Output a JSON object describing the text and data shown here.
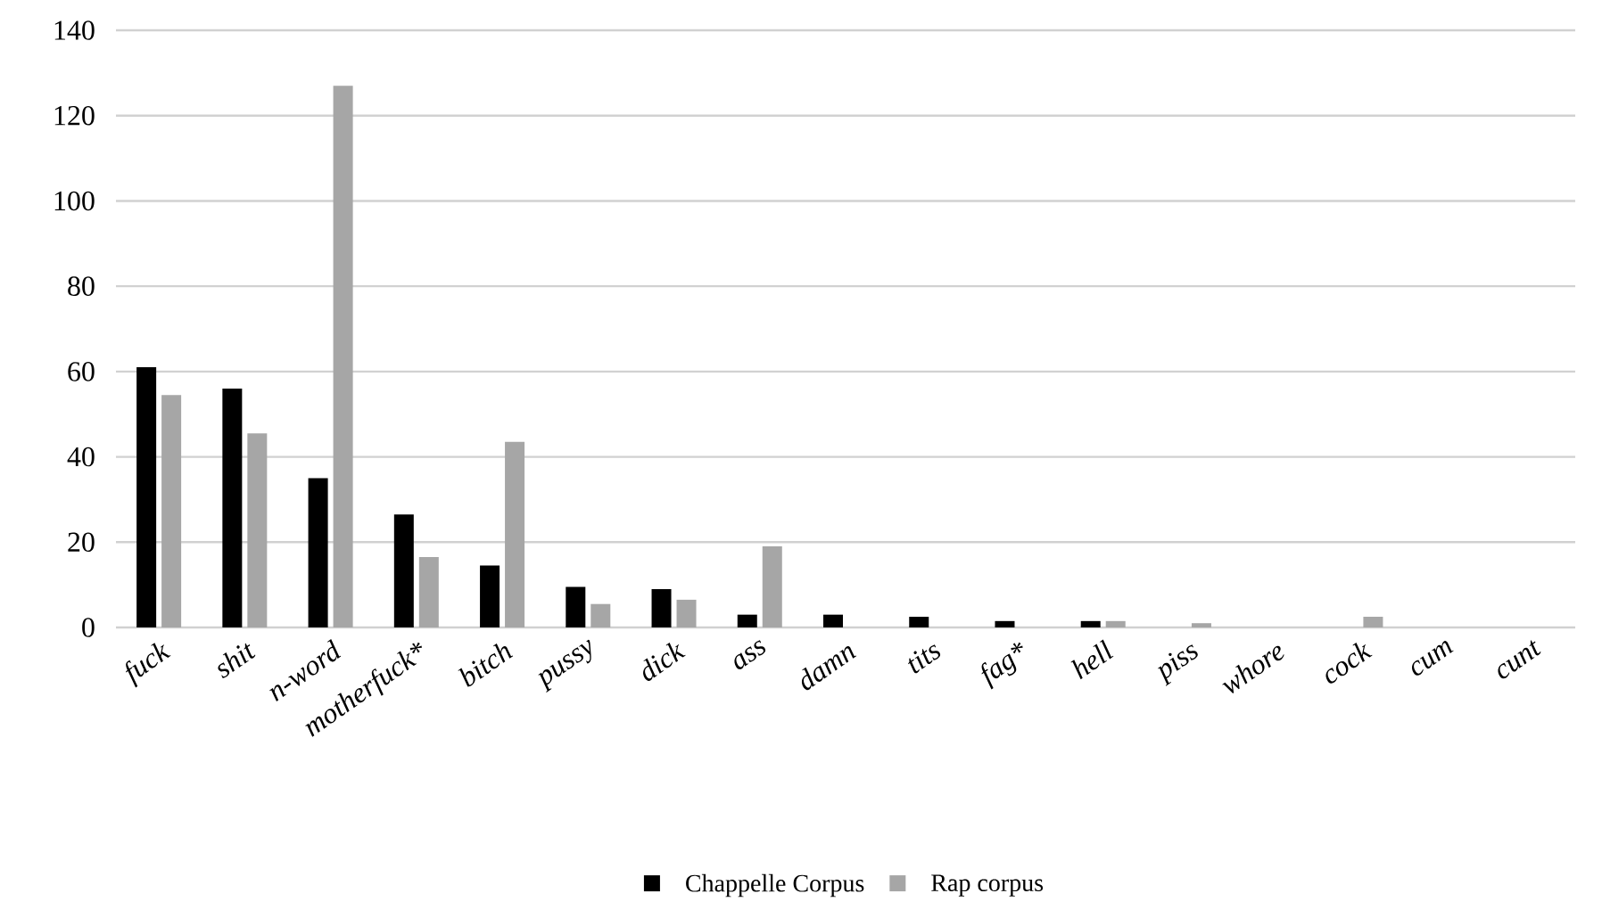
{
  "chart_data": {
    "type": "bar",
    "categories": [
      "fuck",
      "shit",
      "n-word",
      "motherfuck*",
      "bitch",
      "pussy",
      "dick",
      "ass",
      "damn",
      "tits",
      "fag*",
      "hell",
      "piss",
      "whore",
      "cock",
      "cum",
      "cunt"
    ],
    "series": [
      {
        "name": "Chappelle Corpus",
        "color": "#000000",
        "values": [
          61,
          56,
          35,
          26.5,
          14.5,
          9.5,
          9,
          3,
          3,
          2.5,
          1.5,
          1.5,
          0,
          0,
          0,
          0,
          0
        ]
      },
      {
        "name": "Rap corpus",
        "color": "#a6a6a6",
        "values": [
          54.5,
          45.5,
          127,
          16.5,
          43.5,
          5.5,
          6.5,
          19,
          0,
          0,
          0,
          1.5,
          1,
          0,
          2.5,
          0,
          0
        ]
      }
    ],
    "ylim": [
      0,
      140
    ],
    "yticks": [
      0,
      20,
      40,
      60,
      80,
      100,
      120,
      140
    ],
    "grid": "y",
    "legend": "bottom"
  }
}
